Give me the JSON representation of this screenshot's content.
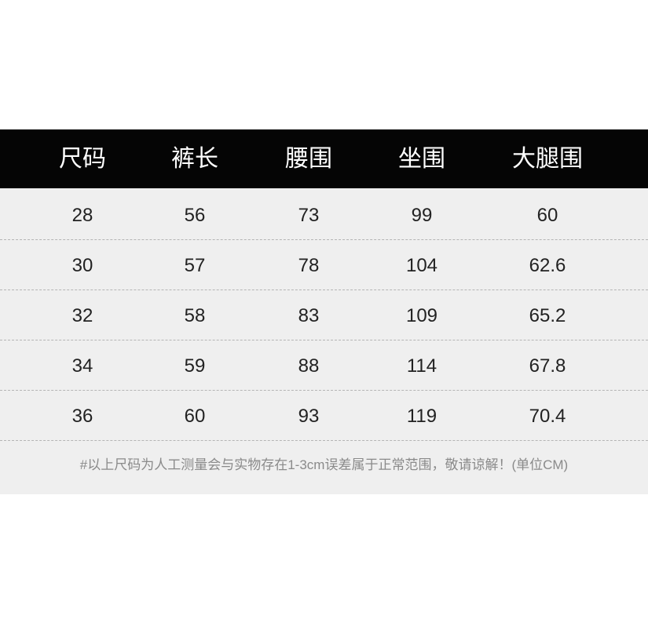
{
  "table": {
    "headers": [
      "尺码",
      "裤长",
      "腰围",
      "坐围",
      "大腿围"
    ],
    "rows": [
      [
        "28",
        "56",
        "73",
        "99",
        "60"
      ],
      [
        "30",
        "57",
        "78",
        "104",
        "62.6"
      ],
      [
        "32",
        "58",
        "83",
        "109",
        "65.2"
      ],
      [
        "34",
        "59",
        "88",
        "114",
        "67.8"
      ],
      [
        "36",
        "60",
        "93",
        "119",
        "70.4"
      ]
    ]
  },
  "note": "#以上尺码为人工测量会与实物存在1-3cm误差属于正常范围，敬请谅解！(单位CM)"
}
